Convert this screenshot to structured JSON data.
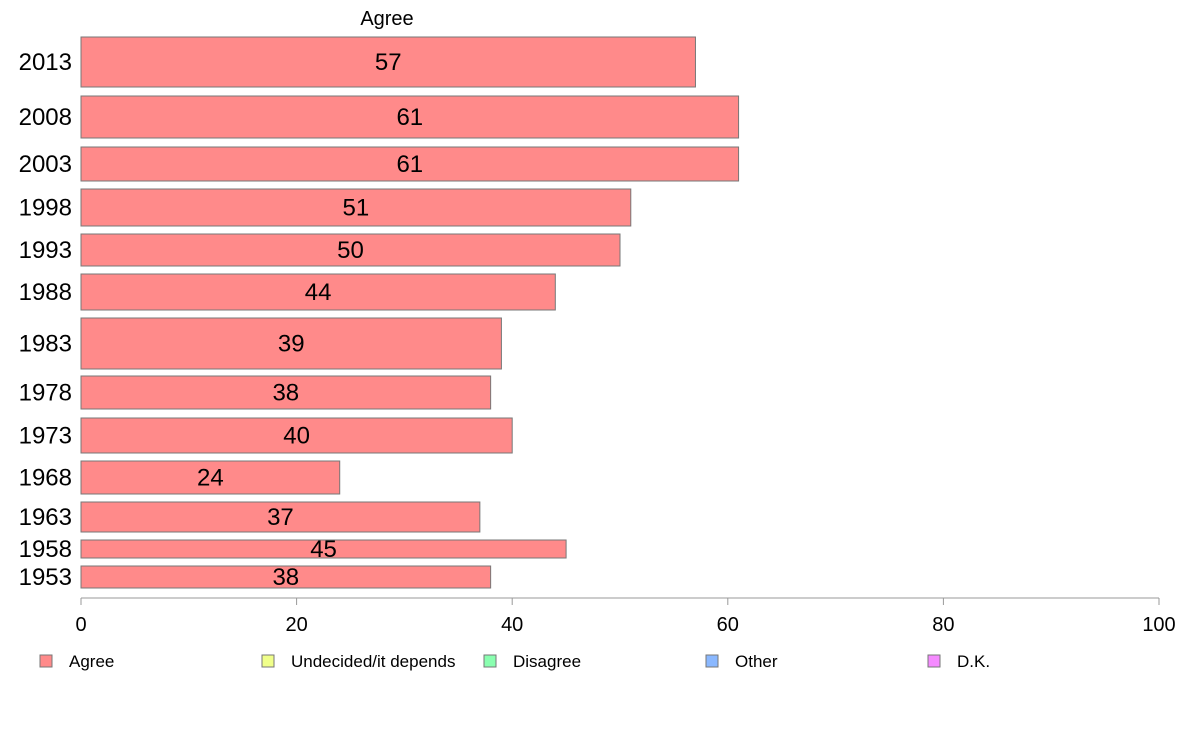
{
  "chart_data": {
    "type": "bar",
    "orientation": "horizontal",
    "title": "Agree",
    "categories": [
      "2013",
      "2008",
      "2003",
      "1998",
      "1993",
      "1988",
      "1983",
      "1978",
      "1973",
      "1968",
      "1963",
      "1958",
      "1953"
    ],
    "series": [
      {
        "name": "Agree",
        "values": [
          57,
          61,
          61,
          51,
          50,
          44,
          39,
          38,
          40,
          24,
          37,
          45,
          38
        ],
        "color": "#ff8a8a"
      }
    ],
    "value_labels": [
      "57",
      "61",
      "61",
      "51",
      "50",
      "44",
      "39",
      "38",
      "40",
      "24",
      "37",
      "45",
      "38"
    ],
    "xlim": [
      0,
      100
    ],
    "x_ticks": [
      0,
      20,
      40,
      60,
      80,
      100
    ],
    "x_tick_labels": [
      "0",
      "20",
      "40",
      "60",
      "80",
      "100"
    ],
    "grid": false,
    "legend_position": "bottom",
    "legend": [
      {
        "label": "Agree",
        "color": "#ff8a8a"
      },
      {
        "label": "Undecided/it depends",
        "color": "#f0ff8a"
      },
      {
        "label": "Disagree",
        "color": "#8affb0"
      },
      {
        "label": "Other",
        "color": "#8ab8ff"
      },
      {
        "label": "D.K.",
        "color": "#f58aff"
      }
    ],
    "colors": {
      "bar_stroke": "#777777",
      "axis": "#999999",
      "text": "#000000"
    }
  }
}
